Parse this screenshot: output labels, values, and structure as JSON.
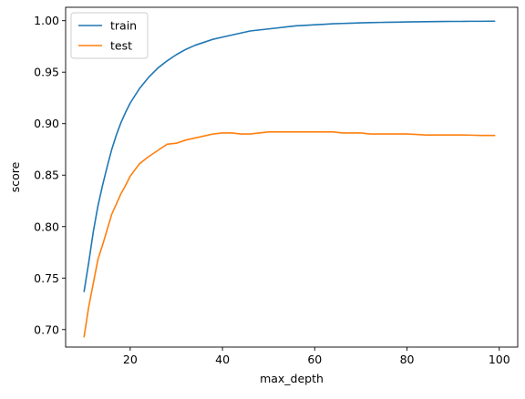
{
  "chart_data": {
    "type": "line",
    "title": "",
    "xlabel": "max_depth",
    "ylabel": "score",
    "xlim": [
      6,
      104
    ],
    "ylim": [
      0.683,
      1.013
    ],
    "xticks": [
      20,
      40,
      60,
      80,
      100
    ],
    "xtick_labels": [
      "20",
      "40",
      "60",
      "80",
      "100"
    ],
    "yticks": [
      0.7,
      0.75,
      0.8,
      0.85,
      0.9,
      0.95,
      1.0
    ],
    "ytick_labels": [
      "0.70",
      "0.75",
      "0.80",
      "0.85",
      "0.90",
      "0.95",
      "1.00"
    ],
    "grid": false,
    "legend_position": "top-left",
    "x": [
      10,
      11,
      12,
      13,
      14,
      15,
      16,
      17,
      18,
      19,
      20,
      22,
      24,
      26,
      28,
      30,
      32,
      34,
      36,
      38,
      40,
      42,
      44,
      46,
      48,
      50,
      52,
      54,
      56,
      58,
      60,
      62,
      64,
      66,
      68,
      70,
      72,
      74,
      76,
      78,
      80,
      82,
      84,
      86,
      88,
      90,
      92,
      94,
      96,
      98,
      99
    ],
    "series": [
      {
        "name": "train",
        "color": "#1f77b4",
        "values": [
          0.737,
          0.765,
          0.795,
          0.82,
          0.84,
          0.858,
          0.875,
          0.889,
          0.901,
          0.911,
          0.92,
          0.934,
          0.945,
          0.954,
          0.961,
          0.967,
          0.972,
          0.976,
          0.979,
          0.982,
          0.984,
          0.986,
          0.988,
          0.99,
          0.991,
          0.992,
          0.993,
          0.994,
          0.995,
          0.9955,
          0.996,
          0.9965,
          0.997,
          0.9973,
          0.9976,
          0.9979,
          0.9981,
          0.9983,
          0.9985,
          0.9986,
          0.9988,
          0.9989,
          0.999,
          0.9991,
          0.9992,
          0.9993,
          0.9993,
          0.9994,
          0.9994,
          0.9995,
          0.9995
        ]
      },
      {
        "name": "test",
        "color": "#ff7f0e",
        "values": [
          0.693,
          0.722,
          0.745,
          0.768,
          0.782,
          0.797,
          0.812,
          0.822,
          0.832,
          0.84,
          0.849,
          0.861,
          0.868,
          0.874,
          0.88,
          0.881,
          0.884,
          0.886,
          0.888,
          0.89,
          0.891,
          0.891,
          0.89,
          0.89,
          0.891,
          0.892,
          0.892,
          0.892,
          0.892,
          0.892,
          0.892,
          0.892,
          0.892,
          0.891,
          0.891,
          0.891,
          0.89,
          0.89,
          0.89,
          0.89,
          0.89,
          0.8895,
          0.889,
          0.889,
          0.889,
          0.889,
          0.889,
          0.8888,
          0.8885,
          0.8885,
          0.8885
        ]
      }
    ]
  }
}
